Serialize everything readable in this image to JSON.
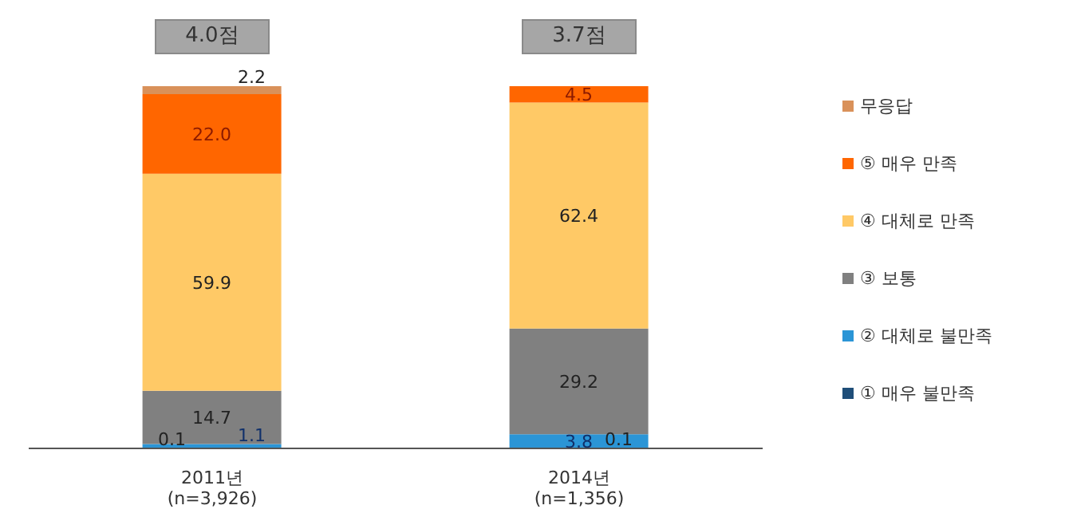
{
  "chart_data": {
    "type": "bar",
    "stacked": true,
    "categories": [
      "2011년\n(n=3,926)",
      "2014년\n(n=1,356)"
    ],
    "series": [
      {
        "name": "① 매우 불만족",
        "color": "#1f4e79",
        "values": [
          0.1,
          0.1
        ],
        "value_labels": [
          "0.1",
          "0.1"
        ]
      },
      {
        "name": "② 대체로 불만족",
        "color": "#2b95d6",
        "values": [
          1.1,
          3.8
        ],
        "value_labels": [
          "1.1",
          "3.8"
        ]
      },
      {
        "name": "③ 보통",
        "color": "#808080",
        "values": [
          14.7,
          29.2
        ],
        "value_labels": [
          "14.7",
          "29.2"
        ]
      },
      {
        "name": "④ 대체로 만족",
        "color": "#ffc966",
        "values": [
          59.9,
          62.4
        ],
        "value_labels": [
          "59.9",
          "62.4"
        ]
      },
      {
        "name": "⑤ 매우 만족",
        "color": "#ff6600",
        "values": [
          22.0,
          4.5
        ],
        "value_labels": [
          "22.0",
          "4.5"
        ]
      },
      {
        "name": "무응답",
        "color": "#d9915a",
        "values": [
          2.2,
          null
        ],
        "value_labels": [
          "2.2",
          null
        ]
      }
    ],
    "annotations": [
      "4.0점",
      "3.7점"
    ],
    "legend": "right",
    "grid": false
  }
}
